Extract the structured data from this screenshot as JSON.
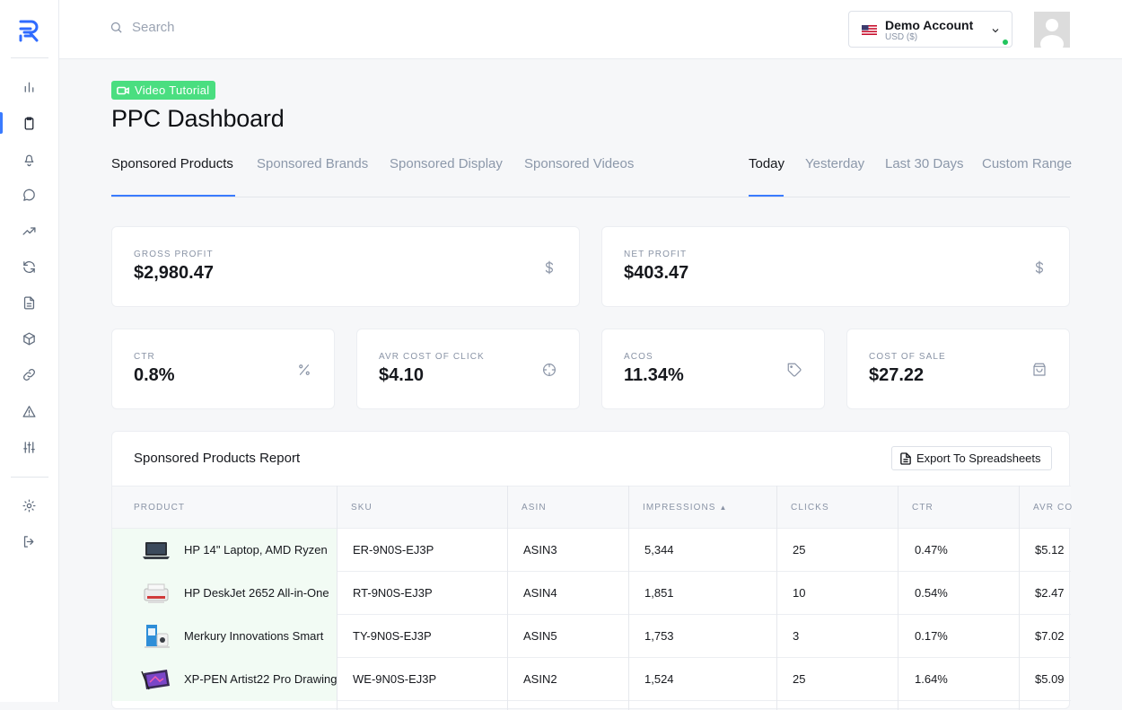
{
  "search": {
    "placeholder": "Search"
  },
  "account": {
    "name": "Demo Account",
    "currency": "USD ($)"
  },
  "header": {
    "badge_label": "Video Tutorial",
    "title": "PPC Dashboard"
  },
  "tabs": [
    "Sponsored Products",
    "Sponsored Brands",
    "Sponsored Display",
    "Sponsored Videos"
  ],
  "ranges": [
    "Today",
    "Yesterday",
    "Last 30 Days",
    "Custom Range"
  ],
  "kpis": [
    {
      "label": "GROSS PROFIT",
      "value": "$2,980.47",
      "icon": "dollar-icon"
    },
    {
      "label": "NET PROFIT",
      "value": "$403.47",
      "icon": "dollar-icon"
    },
    {
      "label": "CTR",
      "value": "0.8%",
      "icon": "percent-icon"
    },
    {
      "label": "AVR COST OF CLICK",
      "value": "$4.10",
      "icon": "crosshair-icon"
    },
    {
      "label": "ACOS",
      "value": "11.34%",
      "icon": "tag-icon"
    },
    {
      "label": "COST OF SALE",
      "value": "$27.22",
      "icon": "shopping-bag-icon"
    }
  ],
  "report": {
    "title": "Sponsored Products Report",
    "export_label": "Export To Spreadsheets",
    "columns": [
      "PRODUCT",
      "SKU",
      "ASIN",
      "IMPRESSIONS",
      "CLICKS",
      "CTR",
      "AVR CO"
    ],
    "rows": [
      {
        "product": "HP 14\" Laptop, AMD Ryzen",
        "sku": "ER-9N0S-EJ3P",
        "asin": "ASIN3",
        "impressions": "5,344",
        "clicks": "25",
        "ctr": "0.47%",
        "avr": "$5.12"
      },
      {
        "product": "HP DeskJet 2652 All-in-One",
        "sku": "RT-9N0S-EJ3P",
        "asin": "ASIN4",
        "impressions": "1,851",
        "clicks": "10",
        "ctr": "0.54%",
        "avr": "$2.47"
      },
      {
        "product": "Merkury Innovations Smart",
        "sku": "TY-9N0S-EJ3P",
        "asin": "ASIN5",
        "impressions": "1,753",
        "clicks": "3",
        "ctr": "0.17%",
        "avr": "$7.02"
      },
      {
        "product": "XP-PEN Artist22 Pro Drawing",
        "sku": "WE-9N0S-EJ3P",
        "asin": "ASIN2",
        "impressions": "1,524",
        "clicks": "25",
        "ctr": "1.64%",
        "avr": "$5.09"
      }
    ]
  },
  "colors": {
    "accent": "#3a7bff",
    "badge": "#4ade80",
    "online": "#22c55e"
  }
}
